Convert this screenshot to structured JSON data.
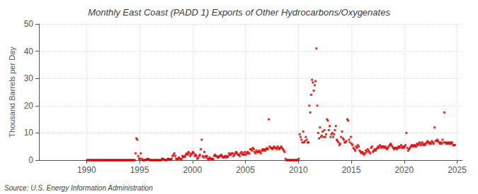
{
  "chart_data": {
    "type": "scatter",
    "title": "Monthly East Coast (PADD 1) Exports of Other Hydrocarbons/Oxygenates",
    "ylabel": "Thousand Barrels per Day",
    "annotations": [
      "Source: U.S. Energy Information Administration"
    ],
    "color": "#cc0000",
    "marker": "square",
    "grid": true,
    "xlim": [
      1985.5,
      2025.5
    ],
    "xticks": [
      1990,
      1995,
      2000,
      2005,
      2010,
      2015,
      2020,
      2025
    ],
    "ylim": [
      0,
      50
    ],
    "yticks": [
      0,
      10,
      20,
      30,
      40,
      50
    ],
    "x": [
      1990.042,
      1990.125,
      1990.208,
      1990.292,
      1990.375,
      1990.458,
      1990.542,
      1990.625,
      1990.708,
      1990.792,
      1990.875,
      1990.958,
      1991.042,
      1991.125,
      1991.208,
      1991.292,
      1991.375,
      1991.458,
      1991.542,
      1991.625,
      1991.708,
      1991.792,
      1991.875,
      1991.958,
      1992.042,
      1992.125,
      1992.208,
      1992.292,
      1992.375,
      1992.458,
      1992.542,
      1992.625,
      1992.708,
      1992.792,
      1992.875,
      1992.958,
      1993.042,
      1993.125,
      1993.208,
      1993.292,
      1993.375,
      1993.458,
      1993.542,
      1993.625,
      1993.708,
      1993.792,
      1993.875,
      1993.958,
      1994.042,
      1994.125,
      1994.208,
      1994.292,
      1994.375,
      1994.458,
      1994.542,
      1994.625,
      1994.708,
      1994.792,
      1994.875,
      1994.958,
      1995.042,
      1995.125,
      1995.208,
      1995.292,
      1995.375,
      1995.458,
      1995.542,
      1995.625,
      1995.708,
      1995.792,
      1995.875,
      1995.958,
      1996.042,
      1996.125,
      1996.208,
      1996.292,
      1996.375,
      1996.458,
      1996.542,
      1996.625,
      1996.708,
      1996.792,
      1996.875,
      1996.958,
      1997.042,
      1997.125,
      1997.208,
      1997.292,
      1997.375,
      1997.458,
      1997.542,
      1997.625,
      1997.708,
      1997.792,
      1997.875,
      1997.958,
      1998.042,
      1998.125,
      1998.208,
      1998.292,
      1998.375,
      1998.458,
      1998.542,
      1998.625,
      1998.708,
      1998.792,
      1998.875,
      1998.958,
      1999.042,
      1999.125,
      1999.208,
      1999.292,
      1999.375,
      1999.458,
      1999.542,
      1999.625,
      1999.708,
      1999.792,
      1999.875,
      1999.958,
      2000.042,
      2000.125,
      2000.208,
      2000.292,
      2000.375,
      2000.458,
      2000.542,
      2000.625,
      2000.708,
      2000.792,
      2000.875,
      2000.958,
      2001.042,
      2001.125,
      2001.208,
      2001.292,
      2001.375,
      2001.458,
      2001.542,
      2001.625,
      2001.708,
      2001.792,
      2001.875,
      2001.958,
      2002.042,
      2002.125,
      2002.208,
      2002.292,
      2002.375,
      2002.458,
      2002.542,
      2002.625,
      2002.708,
      2002.792,
      2002.875,
      2002.958,
      2003.042,
      2003.125,
      2003.208,
      2003.292,
      2003.375,
      2003.458,
      2003.542,
      2003.625,
      2003.708,
      2003.792,
      2003.875,
      2003.958,
      2004.042,
      2004.125,
      2004.208,
      2004.292,
      2004.375,
      2004.458,
      2004.542,
      2004.625,
      2004.708,
      2004.792,
      2004.875,
      2004.958,
      2005.042,
      2005.125,
      2005.208,
      2005.292,
      2005.375,
      2005.458,
      2005.542,
      2005.625,
      2005.708,
      2005.792,
      2005.875,
      2005.958,
      2006.042,
      2006.125,
      2006.208,
      2006.292,
      2006.375,
      2006.458,
      2006.542,
      2006.625,
      2006.708,
      2006.792,
      2006.875,
      2006.958,
      2007.042,
      2007.125,
      2007.208,
      2007.292,
      2007.375,
      2007.458,
      2007.542,
      2007.625,
      2007.708,
      2007.792,
      2007.875,
      2007.958,
      2008.042,
      2008.125,
      2008.208,
      2008.292,
      2008.375,
      2008.458,
      2008.542,
      2008.625,
      2008.708,
      2008.792,
      2008.875,
      2008.958,
      2009.042,
      2009.125,
      2009.208,
      2009.292,
      2009.375,
      2009.458,
      2009.542,
      2009.625,
      2009.708,
      2009.792,
      2009.875,
      2009.958,
      2010.042,
      2010.125,
      2010.208,
      2010.292,
      2010.375,
      2010.458,
      2010.542,
      2010.625,
      2010.708,
      2010.792,
      2010.875,
      2010.958,
      2011.042,
      2011.125,
      2011.208,
      2011.292,
      2011.375,
      2011.458,
      2011.542,
      2011.625,
      2011.708,
      2011.792,
      2011.875,
      2011.958,
      2012.042,
      2012.125,
      2012.208,
      2012.292,
      2012.375,
      2012.458,
      2012.542,
      2012.625,
      2012.708,
      2012.792,
      2012.875,
      2012.958,
      2013.042,
      2013.125,
      2013.208,
      2013.292,
      2013.375,
      2013.458,
      2013.542,
      2013.625,
      2013.708,
      2013.792,
      2013.875,
      2013.958,
      2014.042,
      2014.125,
      2014.208,
      2014.292,
      2014.375,
      2014.458,
      2014.542,
      2014.625,
      2014.708,
      2014.792,
      2014.875,
      2014.958,
      2015.042,
      2015.125,
      2015.208,
      2015.292,
      2015.375,
      2015.458,
      2015.542,
      2015.625,
      2015.708,
      2015.792,
      2015.875,
      2015.958,
      2016.042,
      2016.125,
      2016.208,
      2016.292,
      2016.375,
      2016.458,
      2016.542,
      2016.625,
      2016.708,
      2016.792,
      2016.875,
      2016.958,
      2017.042,
      2017.125,
      2017.208,
      2017.292,
      2017.375,
      2017.458,
      2017.542,
      2017.625,
      2017.708,
      2017.792,
      2017.875,
      2017.958,
      2018.042,
      2018.125,
      2018.208,
      2018.292,
      2018.375,
      2018.458,
      2018.542,
      2018.625,
      2018.708,
      2018.792,
      2018.875,
      2018.958,
      2019.042,
      2019.125,
      2019.208,
      2019.292,
      2019.375,
      2019.458,
      2019.542,
      2019.625,
      2019.708,
      2019.792,
      2019.875,
      2019.958,
      2020.042,
      2020.125,
      2020.208,
      2020.292,
      2020.375,
      2020.458,
      2020.542,
      2020.625,
      2020.708,
      2020.792,
      2020.875,
      2020.958,
      2021.042,
      2021.125,
      2021.208,
      2021.292,
      2021.375,
      2021.458,
      2021.542,
      2021.625,
      2021.708,
      2021.792,
      2021.875,
      2021.958,
      2022.042,
      2022.125,
      2022.208,
      2022.292,
      2022.375,
      2022.458,
      2022.542,
      2022.625,
      2022.708,
      2022.792,
      2022.875,
      2022.958,
      2023.042,
      2023.125,
      2023.208,
      2023.292,
      2023.375,
      2023.458,
      2023.542,
      2023.625,
      2023.708,
      2023.792,
      2023.875,
      2023.958,
      2024.042,
      2024.125,
      2024.208,
      2024.292,
      2024.375,
      2024.458,
      2024.542,
      2024.625,
      2024.708,
      2024.792
    ],
    "values": [
      0,
      0,
      0,
      0,
      0,
      0,
      0,
      0,
      0,
      0,
      0,
      0,
      0,
      0,
      0,
      0,
      0,
      0,
      0,
      0,
      0,
      0,
      0,
      0,
      0,
      0,
      0,
      0,
      0,
      0,
      0,
      0,
      0,
      0,
      0,
      0,
      0,
      0,
      0,
      0,
      0,
      0,
      0,
      0,
      0,
      0,
      0,
      0,
      0,
      0,
      0,
      0,
      0,
      0,
      0,
      2.5,
      8.0,
      7.5,
      1.5,
      0.5,
      0.5,
      2.5,
      0.5,
      0,
      0,
      0,
      0,
      0.2,
      0.3,
      0.5,
      0.3,
      0,
      0,
      0,
      0,
      0,
      0,
      0,
      0,
      0,
      0,
      0,
      0,
      0,
      0,
      0.5,
      0.5,
      0.3,
      0.1,
      0,
      0,
      0.3,
      0.5,
      0.3,
      0.3,
      0.2,
      0.5,
      1.5,
      2.0,
      2.5,
      1.5,
      0.5,
      0.3,
      0.5,
      1.0,
      0.5,
      0.5,
      0.3,
      1.5,
      1.0,
      1.5,
      1.2,
      2.0,
      2.5,
      2.0,
      3.0,
      2.5,
      1.5,
      2.0,
      2.5,
      3.0,
      2.5,
      1.5,
      2.0,
      1.5,
      0.5,
      0.8,
      1.5,
      2.0,
      4.0,
      7.5,
      1.5,
      1.0,
      3.0,
      1.5,
      1.0,
      1.5,
      0.5,
      0.3,
      1.0,
      0.5,
      0.5,
      0.5,
      0.3,
      1.5,
      2.0,
      1.5,
      1.5,
      1.0,
      1.0,
      1.5,
      1.5,
      2.0,
      1.5,
      1.0,
      1.0,
      1.5,
      1.0,
      1.5,
      1.0,
      1.5,
      2.5,
      2.0,
      2.0,
      2.5,
      2.5,
      1.5,
      2.0,
      2.5,
      3.0,
      2.5,
      2.0,
      2.0,
      1.5,
      2.5,
      3.0,
      2.0,
      2.5,
      2.0,
      3.0,
      2.0,
      2.5,
      3.0,
      2.5,
      2.5,
      4.0,
      4.0,
      3.5,
      4.5,
      4.0,
      3.0,
      2.5,
      3.5,
      3.0,
      3.0,
      3.5,
      3.0,
      2.5,
      3.5,
      4.0,
      3.5,
      4.0,
      3.5,
      4.0,
      4.5,
      4.0,
      15.0,
      5.0,
      4.5,
      4.5,
      4.0,
      4.5,
      5.0,
      4.5,
      4.5,
      4.0,
      5.0,
      4.5,
      4.0,
      4.5,
      5.0,
      4.5,
      4.0,
      3.5,
      3.0,
      0.5,
      0,
      0,
      0,
      0,
      0,
      0,
      0,
      0,
      0,
      0,
      0,
      0,
      0,
      0,
      0.5,
      9.5,
      8.5,
      7.5,
      6.5,
      10.5,
      6.5,
      7.0,
      8.5,
      7.5,
      6.5,
      6.5,
      20.0,
      17.5,
      24.0,
      29.5,
      28.5,
      25.5,
      27.5,
      29.0,
      41.0,
      20.0,
      10.0,
      8.0,
      12.0,
      8.5,
      9.0,
      10.5,
      8.5,
      11.0,
      8.5,
      9.5,
      15.0,
      14.5,
      11.0,
      12.5,
      8.5,
      9.5,
      10.0,
      8.5,
      9.5,
      11.0,
      12.5,
      7.5,
      7.0,
      6.5,
      5.5,
      6.0,
      8.5,
      10.5,
      8.0,
      7.5,
      6.5,
      6.5,
      7.0,
      15.0,
      14.5,
      7.5,
      6.5,
      8.5,
      6.0,
      5.5,
      4.5,
      4.0,
      3.5,
      5.0,
      4.5,
      5.5,
      5.0,
      3.5,
      3.0,
      2.5,
      3.0,
      2.5,
      2.0,
      2.5,
      3.5,
      3.0,
      4.0,
      3.5,
      3.0,
      2.5,
      4.5,
      5.0,
      3.0,
      3.5,
      4.0,
      3.5,
      4.0,
      4.5,
      5.0,
      4.5,
      5.5,
      5.0,
      4.5,
      5.0,
      5.0,
      4.5,
      5.0,
      4.5,
      4.0,
      4.5,
      5.0,
      5.5,
      6.0,
      5.5,
      5.0,
      4.5,
      4.0,
      4.5,
      4.5,
      4.0,
      4.5,
      5.0,
      4.5,
      5.0,
      5.5,
      4.5,
      5.0,
      4.5,
      5.0,
      5.5,
      10.0,
      4.5,
      3.5,
      4.0,
      4.5,
      5.0,
      5.5,
      5.0,
      5.5,
      5.0,
      5.5,
      5.0,
      6.0,
      5.5,
      6.0,
      6.5,
      5.5,
      6.0,
      6.5,
      5.5,
      6.0,
      5.5,
      6.0,
      6.5,
      7.0,
      6.5,
      6.0,
      6.5,
      6.0,
      7.0,
      6.5,
      6.0,
      12.0,
      7.0,
      7.0,
      7.5,
      7.0,
      6.5,
      6.0,
      6.5,
      6.0,
      7.5,
      6.5,
      17.5,
      6.5,
      6.0,
      6.5,
      6.0,
      6.5,
      6.0,
      6.5,
      6.0,
      6.5,
      5.5,
      5.5,
      5.5
    ]
  }
}
